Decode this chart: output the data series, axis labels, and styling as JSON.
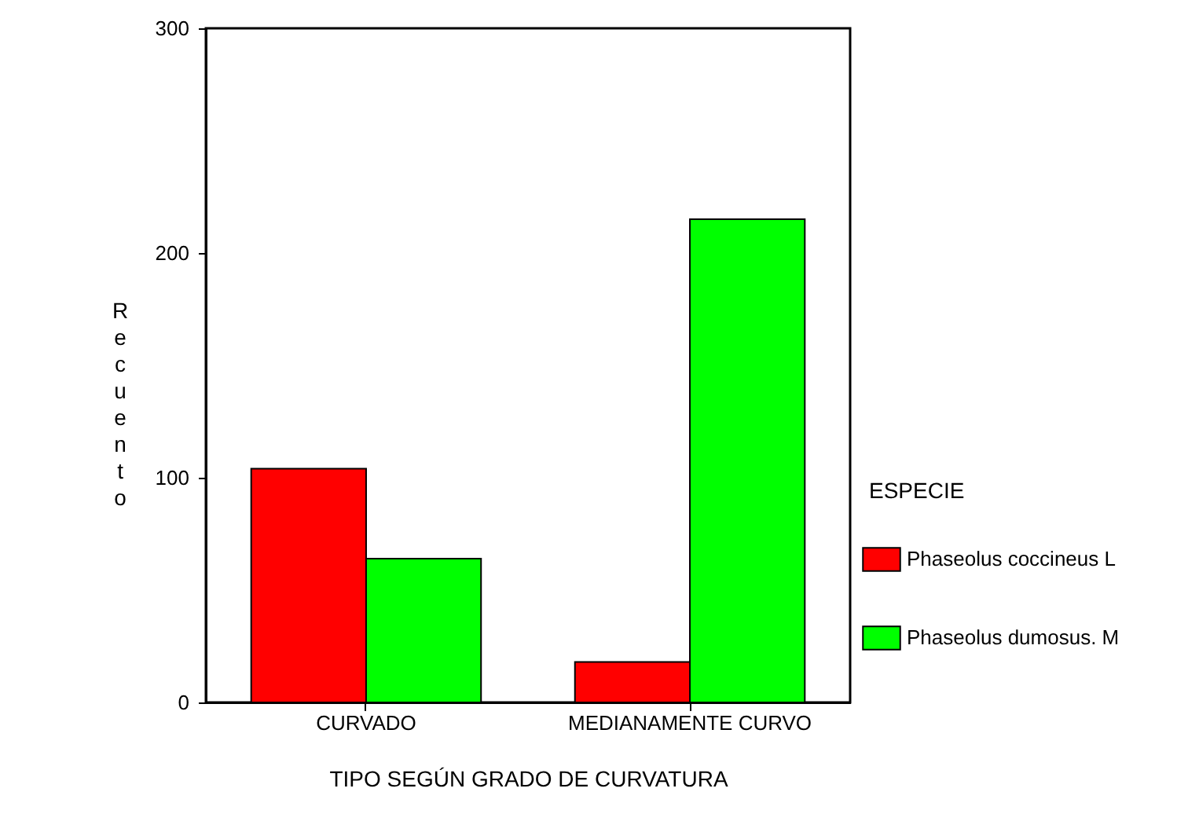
{
  "chart_data": {
    "type": "bar",
    "xlabel": "TIPO SEGÚN GRADO DE CURVATURA",
    "ylabel": "Recuento",
    "legend_title": "ESPECIE",
    "categories": [
      "CURVADO",
      "MEDIANAMENTE CURVO"
    ],
    "series": [
      {
        "name": "Phaseolus coccineus L",
        "color": "#ff0000",
        "values": [
          104,
          18
        ]
      },
      {
        "name": "Phaseolus dumosus. M",
        "color": "#00ff00",
        "values": [
          64,
          215
        ]
      }
    ],
    "ylim": [
      0,
      300
    ],
    "yticks": [
      0,
      100,
      200,
      300
    ],
    "grid": false,
    "legend": "right"
  }
}
